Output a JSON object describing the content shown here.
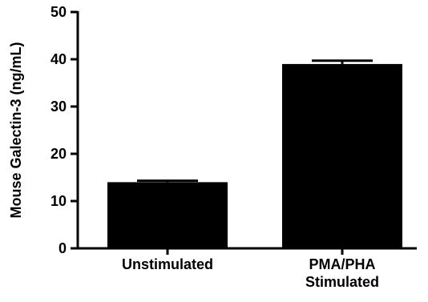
{
  "chart_data": {
    "type": "bar",
    "title": "",
    "xlabel": "",
    "ylabel": "Mouse Galectin-3 (ng/mL)",
    "categories": [
      [
        "Unstimulated"
      ],
      [
        "PMA/PHA",
        "Stimulated"
      ]
    ],
    "values": [
      14,
      39
    ],
    "error_upper": [
      14.3,
      39.7
    ],
    "ylim": [
      0,
      50
    ],
    "yticks": [
      0,
      10,
      20,
      30,
      40,
      50
    ],
    "grid": false,
    "legend": "none",
    "bar_color": "#000000"
  }
}
